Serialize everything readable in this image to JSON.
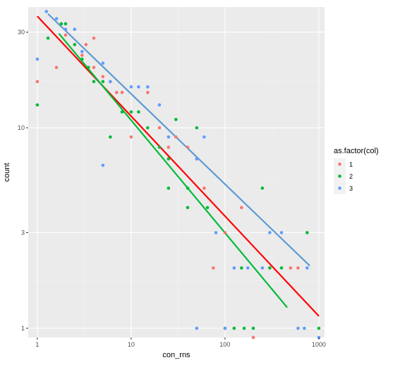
{
  "chart_data": {
    "type": "scatter",
    "xlabel": "con_rns",
    "ylabel": "count",
    "x_scale": "log10",
    "y_scale": "log10",
    "xlim": [
      0.8,
      1150
    ],
    "ylim": [
      0.9,
      40
    ],
    "x_ticks": [
      1,
      10,
      100,
      1000
    ],
    "x_tick_labels": [
      "1",
      "10",
      "100",
      "1000"
    ],
    "y_ticks": [
      1,
      3,
      10,
      30
    ],
    "y_tick_labels": [
      "1",
      "3",
      "10",
      "30"
    ],
    "grid": true,
    "legend": {
      "title": "as.factor(col)",
      "position": "right"
    },
    "series": [
      {
        "name": "1",
        "color": "#F8766D",
        "points": [
          [
            1,
            17
          ],
          [
            1.6,
            20
          ],
          [
            2,
            29
          ],
          [
            2.5,
            26
          ],
          [
            3,
            23
          ],
          [
            3.3,
            26
          ],
          [
            4,
            28
          ],
          [
            4,
            20
          ],
          [
            5,
            18
          ],
          [
            6,
            17
          ],
          [
            7,
            15
          ],
          [
            8,
            15
          ],
          [
            10,
            9
          ],
          [
            15,
            15
          ],
          [
            20,
            10
          ],
          [
            25,
            8
          ],
          [
            30,
            9
          ],
          [
            40,
            8
          ],
          [
            50,
            7
          ],
          [
            60,
            5
          ],
          [
            75,
            2
          ],
          [
            100,
            3
          ],
          [
            150,
            4
          ],
          [
            200,
            0.9
          ],
          [
            300,
            2
          ],
          [
            500,
            2
          ],
          [
            600,
            2
          ]
        ]
      },
      {
        "name": "2",
        "color": "#00BA38",
        "points": [
          [
            1,
            13
          ],
          [
            1.3,
            28
          ],
          [
            1.8,
            33
          ],
          [
            2,
            33
          ],
          [
            2.5,
            26
          ],
          [
            3,
            22
          ],
          [
            3.5,
            20
          ],
          [
            4,
            17
          ],
          [
            5,
            17
          ],
          [
            6,
            9
          ],
          [
            8,
            12
          ],
          [
            10,
            12
          ],
          [
            12,
            12
          ],
          [
            15,
            10
          ],
          [
            20,
            8
          ],
          [
            25,
            5
          ],
          [
            25,
            7
          ],
          [
            30,
            11
          ],
          [
            40,
            4
          ],
          [
            40,
            5
          ],
          [
            50,
            10
          ],
          [
            65,
            4
          ],
          [
            100,
            1
          ],
          [
            125,
            1
          ],
          [
            150,
            2
          ],
          [
            160,
            1
          ],
          [
            200,
            1
          ],
          [
            250,
            5
          ],
          [
            300,
            2
          ],
          [
            400,
            2
          ],
          [
            750,
            3
          ],
          [
            1000,
            1
          ]
        ]
      },
      {
        "name": "3",
        "color": "#619CFF",
        "points": [
          [
            1,
            22
          ],
          [
            1.25,
            38
          ],
          [
            1.6,
            35
          ],
          [
            2,
            31
          ],
          [
            2.5,
            31
          ],
          [
            3,
            24
          ],
          [
            5,
            21
          ],
          [
            5,
            6.5
          ],
          [
            6,
            17
          ],
          [
            10,
            16
          ],
          [
            12,
            16
          ],
          [
            15,
            16
          ],
          [
            20,
            13
          ],
          [
            25,
            9
          ],
          [
            50,
            1
          ],
          [
            50,
            7
          ],
          [
            60,
            9
          ],
          [
            80,
            3
          ],
          [
            100,
            1
          ],
          [
            125,
            2
          ],
          [
            175,
            2
          ],
          [
            250,
            2
          ],
          [
            300,
            3
          ],
          [
            400,
            3
          ],
          [
            600,
            1
          ],
          [
            700,
            1
          ],
          [
            750,
            2
          ],
          [
            1000,
            0.9
          ]
        ]
      }
    ],
    "fit_lines": [
      {
        "series": "1",
        "color": "#FF0000",
        "from": [
          1,
          36
        ],
        "to": [
          1000,
          1.15
        ]
      },
      {
        "series": "2",
        "color": "#00BA38",
        "from": [
          1.7,
          29.5
        ],
        "to": [
          460,
          1.27
        ]
      },
      {
        "series": "3",
        "color": "#5B9BD5",
        "from": [
          1.3,
          37
        ],
        "to": [
          800,
          2.05
        ]
      }
    ]
  }
}
